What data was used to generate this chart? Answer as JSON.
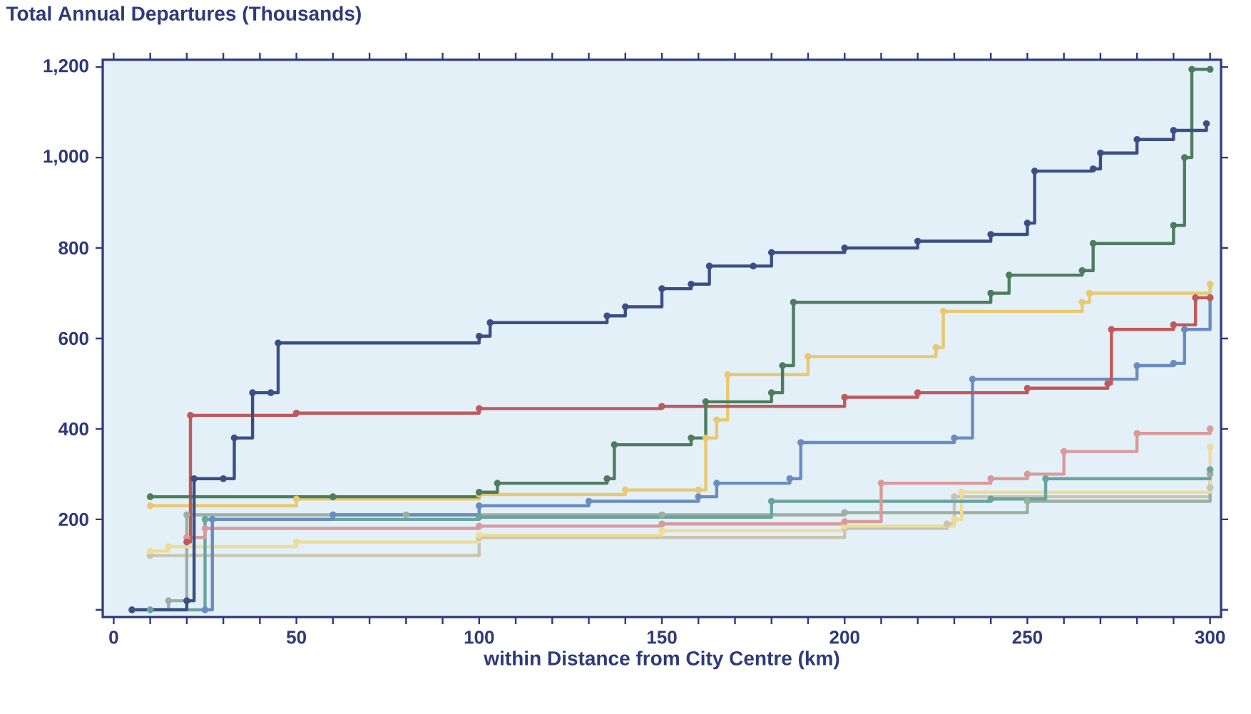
{
  "chart_data": {
    "type": "step",
    "ylabel": "Total Annual Departures (Thousands)",
    "xlabel": "within Distance from City Centre (km)",
    "xlim": [
      -3,
      303
    ],
    "ylim": [
      -16,
      1216
    ],
    "xticks": [
      0,
      {
        "value": 10,
        "label": null
      },
      {
        "value": 20,
        "label": null
      },
      {
        "value": 30,
        "label": null
      },
      {
        "value": 40,
        "label": null
      },
      50,
      {
        "value": 60,
        "label": null
      },
      {
        "value": 70,
        "label": null
      },
      {
        "value": 80,
        "label": null
      },
      {
        "value": 90,
        "label": null
      },
      100,
      {
        "value": 110,
        "label": null
      },
      {
        "value": 120,
        "label": null
      },
      {
        "value": 130,
        "label": null
      },
      {
        "value": 140,
        "label": null
      },
      150,
      {
        "value": 160,
        "label": null
      },
      {
        "value": 170,
        "label": null
      },
      {
        "value": 180,
        "label": null
      },
      {
        "value": 190,
        "label": null
      },
      200,
      {
        "value": 210,
        "label": null
      },
      {
        "value": 220,
        "label": null
      },
      {
        "value": 230,
        "label": null
      },
      {
        "value": 240,
        "label": null
      },
      250,
      {
        "value": 260,
        "label": null
      },
      {
        "value": 270,
        "label": null
      },
      {
        "value": 280,
        "label": null
      },
      {
        "value": 290,
        "label": null
      },
      300
    ],
    "yticks": [
      {
        "value": 0,
        "label": null
      },
      200,
      400,
      600,
      800,
      {
        "value": 1000,
        "label": "1,000"
      },
      {
        "value": 1200,
        "label": "1,200"
      }
    ],
    "marker": "circle",
    "series": [
      {
        "color": "#c8c4b0",
        "x": [
          10,
          100,
          200,
          228,
          230,
          300
        ],
        "values": [
          120,
          160,
          180,
          190,
          250,
          270
        ]
      },
      {
        "color": "#9bb0a0",
        "x": [
          5,
          15,
          20,
          80,
          150,
          200,
          250,
          300
        ],
        "values": [
          0,
          20,
          210,
          210,
          210,
          215,
          240,
          300
        ]
      },
      {
        "color": "#eedc9a",
        "x": [
          10,
          15,
          50,
          100,
          150,
          200,
          230,
          232,
          300
        ],
        "values": [
          130,
          140,
          150,
          165,
          175,
          185,
          200,
          260,
          360
        ]
      },
      {
        "color": "#6aa3a0",
        "x": [
          10,
          25,
          100,
          180,
          240,
          255,
          300
        ],
        "values": [
          0,
          200,
          205,
          240,
          245,
          290,
          310
        ]
      },
      {
        "color": "#d99a9a",
        "x": [
          20,
          25,
          100,
          150,
          200,
          210,
          240,
          250,
          260,
          280,
          300
        ],
        "values": [
          160,
          180,
          185,
          190,
          195,
          280,
          290,
          300,
          350,
          390,
          400
        ]
      },
      {
        "color": "#6a8cc0",
        "x": [
          25,
          27,
          60,
          100,
          130,
          160,
          165,
          185,
          188,
          230,
          235,
          280,
          290,
          293,
          300
        ],
        "values": [
          0,
          200,
          210,
          230,
          240,
          250,
          280,
          290,
          370,
          380,
          510,
          540,
          545,
          620,
          690
        ]
      },
      {
        "color": "#e8c870",
        "x": [
          10,
          50,
          100,
          140,
          160,
          162,
          165,
          168,
          190,
          225,
          227,
          265,
          267,
          300
        ],
        "values": [
          230,
          245,
          255,
          265,
          265,
          380,
          420,
          520,
          560,
          580,
          660,
          680,
          700,
          720
        ]
      },
      {
        "color": "#c0595a",
        "x": [
          20,
          21,
          50,
          100,
          150,
          200,
          220,
          250,
          272,
          273,
          290,
          296,
          300
        ],
        "values": [
          150,
          430,
          435,
          445,
          450,
          470,
          480,
          490,
          500,
          620,
          630,
          690,
          690
        ]
      },
      {
        "color": "#4e7c5e",
        "x": [
          10,
          60,
          100,
          105,
          135,
          137,
          158,
          162,
          180,
          183,
          186,
          240,
          245,
          265,
          268,
          290,
          293,
          295,
          300
        ],
        "values": [
          250,
          250,
          260,
          280,
          290,
          365,
          380,
          460,
          480,
          540,
          680,
          700,
          740,
          750,
          810,
          850,
          1000,
          1195,
          1195
        ]
      },
      {
        "color": "#3b4f85",
        "x": [
          5,
          20,
          22,
          30,
          33,
          38,
          43,
          45,
          100,
          103,
          135,
          140,
          150,
          158,
          163,
          175,
          180,
          200,
          220,
          240,
          250,
          252,
          268,
          270,
          280,
          290,
          299
        ],
        "values": [
          0,
          20,
          290,
          290,
          380,
          480,
          480,
          590,
          605,
          635,
          650,
          670,
          710,
          720,
          760,
          760,
          790,
          800,
          815,
          830,
          855,
          970,
          975,
          1010,
          1040,
          1060,
          1075
        ]
      }
    ]
  }
}
